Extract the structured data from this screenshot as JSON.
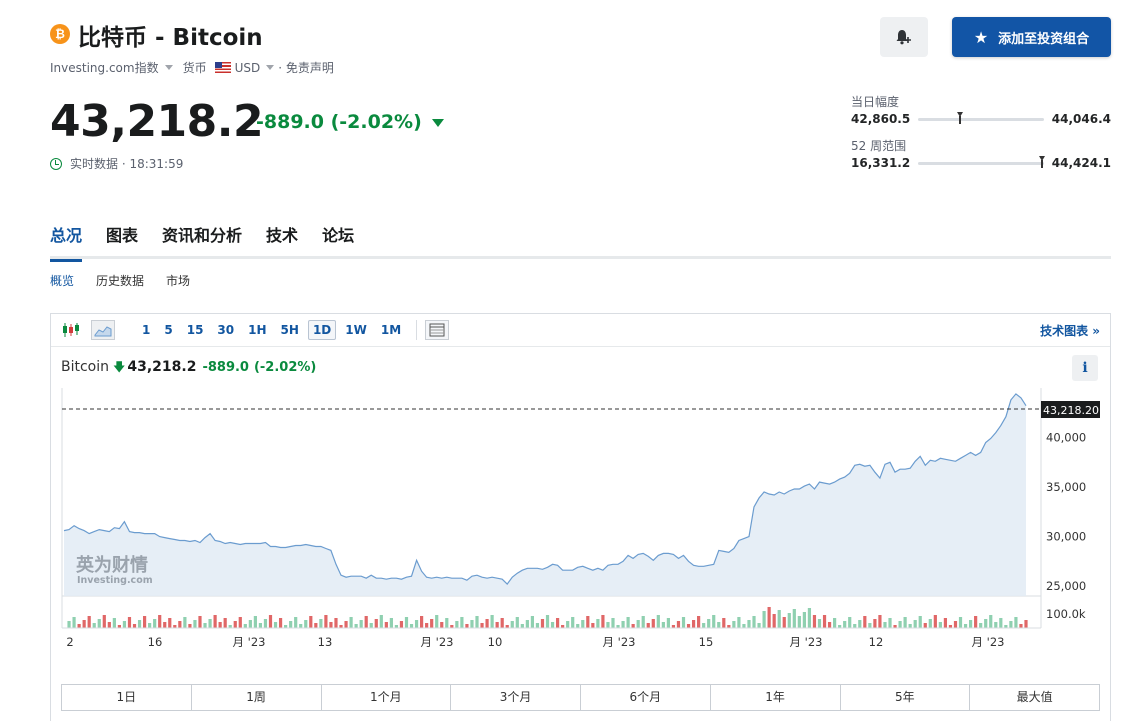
{
  "header": {
    "coin_symbol": "₿",
    "title": "比特币 - Bitcoin",
    "source": "Investing.com指数",
    "currency_label": "货币",
    "currency": "USD",
    "disclaimer": "· 免责声明"
  },
  "quote": {
    "price": "43,218.2",
    "change": "-889.0 (-2.02%)",
    "realtime_label": "实时数据 · 18:31:59"
  },
  "actions": {
    "add_portfolio": "添加至投资组合"
  },
  "ranges": {
    "day": {
      "label": "当日幅度",
      "low": "42,860.5",
      "high": "44,046.4",
      "position": 0.31
    },
    "week52": {
      "label": "52 周范围",
      "low": "16,331.2",
      "high": "44,424.1",
      "position": 0.96
    }
  },
  "tabs": [
    "总况",
    "图表",
    "资讯和分析",
    "技术",
    "论坛"
  ],
  "subtabs": [
    "概览",
    "历史数据",
    "市场"
  ],
  "toolbar": {
    "timeframes": [
      "1",
      "5",
      "15",
      "30",
      "1H",
      "5H",
      "1D",
      "1W",
      "1M"
    ],
    "active_timeframe": "1D",
    "advanced_link": "技术图表 »"
  },
  "chart_legend": {
    "name": "Bitcoin",
    "value": "43,218.2",
    "change": "-889.0",
    "change_pct": "(-2.02%)"
  },
  "watermark": {
    "cn": "英为财情",
    "en": "Investing.com"
  },
  "periods": [
    "1日",
    "1周",
    "1个月",
    "3个月",
    "6个月",
    "1年",
    "5年",
    "最大值"
  ],
  "colors": {
    "accent": "#1256a0",
    "button": "#1255a6",
    "positive_change": "#0a8a3e",
    "line": "#6b9ccf",
    "area_fill": "#e3ecf5",
    "volume_up": "#8fd0b0",
    "volume_down": "#e06767"
  },
  "chart_data": {
    "type": "area",
    "title": "",
    "current_value_label": "43,218.20",
    "ylim": [
      24000,
      45000
    ],
    "y_ticks": [
      25000,
      30000,
      35000,
      40000
    ],
    "y_tick_labels": [
      "25,000",
      "30,000",
      "35,000",
      "40,000"
    ],
    "volume_tick_label": "100.0k",
    "x_tick_labels": [
      "2",
      "16",
      "月 '23",
      "13",
      "月 '23",
      "10",
      "月 '23",
      "15",
      "月 '23",
      "12",
      "月 '23"
    ],
    "price_series": [
      30600,
      30700,
      31100,
      30800,
      30600,
      30300,
      30500,
      30700,
      30600,
      30500,
      30900,
      30800,
      31500,
      30500,
      30400,
      30400,
      30300,
      30300,
      30300,
      30000,
      29900,
      29800,
      29700,
      29600,
      29600,
      29500,
      29600,
      29400,
      29900,
      30300,
      29600,
      29500,
      29300,
      29400,
      29300,
      29200,
      29300,
      29300,
      29300,
      29300,
      29400,
      29000,
      29000,
      28900,
      28900,
      29000,
      29100,
      29100,
      29200,
      29100,
      29000,
      29000,
      28800,
      28600,
      27200,
      26100,
      25900,
      26000,
      26000,
      26000,
      25800,
      26100,
      25800,
      25800,
      25700,
      25800,
      25800,
      25700,
      25900,
      26000,
      27600,
      26500,
      25900,
      25800,
      25900,
      25800,
      25900,
      25800,
      25800,
      25800,
      25600,
      26000,
      26100,
      25900,
      25800,
      25900,
      25800,
      25700,
      25200,
      25900,
      26300,
      26600,
      26800,
      26800,
      26800,
      26700,
      26900,
      27200,
      27100,
      26600,
      26600,
      26600,
      26900,
      27000,
      26800,
      26600,
      26800,
      26600,
      27100,
      27200,
      27200,
      27500,
      28100,
      27800,
      28200,
      28300,
      28000,
      27600,
      28100,
      28300,
      28300,
      28200,
      27800,
      28100,
      27500,
      27100,
      27000,
      27000,
      27100,
      27200,
      28600,
      28500,
      28400,
      28800,
      29600,
      29800,
      30000,
      33000,
      33900,
      34500,
      34300,
      34200,
      34500,
      34300,
      34600,
      34800,
      34800,
      35100,
      35300,
      34800,
      35500,
      35400,
      35300,
      35500,
      35800,
      36000,
      36400,
      37200,
      37300,
      37100,
      37200,
      36500,
      35900,
      37300,
      37500,
      36500,
      36800,
      36800,
      36900,
      37600,
      38100,
      37200,
      37700,
      37600,
      37900,
      37800,
      37700,
      37600,
      37900,
      38200,
      38500,
      38200,
      38500,
      39500,
      39900,
      40500,
      41200,
      42100,
      43800,
      44400,
      44000,
      43218
    ]
  }
}
